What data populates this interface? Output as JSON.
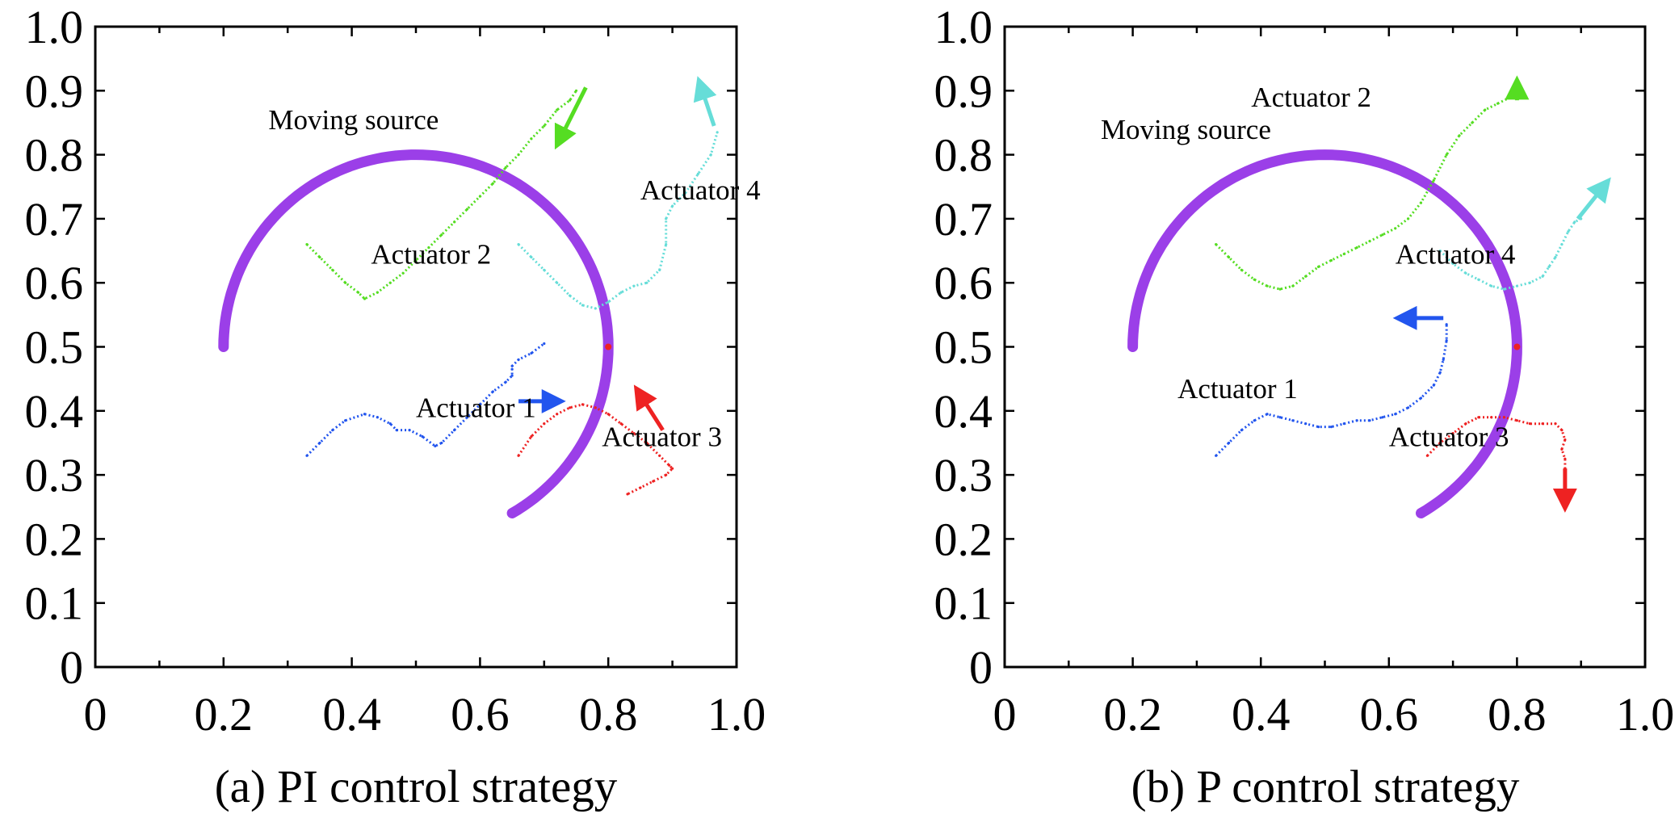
{
  "chart_data": [
    {
      "type": "line",
      "caption": "(a) PI control strategy",
      "xlim": [
        0,
        1.0
      ],
      "ylim": [
        0,
        1.0
      ],
      "xticks": [
        "0",
        "0.2",
        "0.4",
        "0.6",
        "0.8",
        "1.0"
      ],
      "yticks": [
        "0",
        "0.1",
        "0.2",
        "0.3",
        "0.4",
        "0.5",
        "0.6",
        "0.7",
        "0.8",
        "0.9",
        "1.0"
      ],
      "source": {
        "label": "Moving source",
        "label_at": [
          0.27,
          0.84
        ],
        "center": [
          0.5,
          0.5
        ],
        "radius": 0.3,
        "theta_start_deg": -60,
        "theta_end_deg": 180,
        "color": "#9b3fe8"
      },
      "series": [
        {
          "name": "Actuator 1",
          "color": "#2255ee",
          "label_at": [
            0.5,
            0.39
          ],
          "points": [
            [
              0.33,
              0.33
            ],
            [
              0.35,
              0.35
            ],
            [
              0.37,
              0.37
            ],
            [
              0.39,
              0.385
            ],
            [
              0.42,
              0.395
            ],
            [
              0.44,
              0.39
            ],
            [
              0.46,
              0.38
            ],
            [
              0.47,
              0.37
            ],
            [
              0.49,
              0.37
            ],
            [
              0.51,
              0.36
            ],
            [
              0.53,
              0.345
            ],
            [
              0.54,
              0.35
            ],
            [
              0.56,
              0.37
            ],
            [
              0.58,
              0.39
            ],
            [
              0.6,
              0.41
            ],
            [
              0.62,
              0.43
            ],
            [
              0.64,
              0.445
            ],
            [
              0.65,
              0.455
            ],
            [
              0.65,
              0.465
            ],
            [
              0.65,
              0.47
            ],
            [
              0.66,
              0.48
            ],
            [
              0.68,
              0.49
            ],
            [
              0.7,
              0.505
            ]
          ],
          "arrow": {
            "from": [
              0.66,
              0.415
            ],
            "to": [
              0.715,
              0.415
            ]
          }
        },
        {
          "name": "Actuator 2",
          "color": "#55dd22",
          "label_at": [
            0.43,
            0.63
          ],
          "points": [
            [
              0.33,
              0.66
            ],
            [
              0.35,
              0.64
            ],
            [
              0.37,
              0.62
            ],
            [
              0.39,
              0.6
            ],
            [
              0.41,
              0.585
            ],
            [
              0.42,
              0.575
            ],
            [
              0.44,
              0.585
            ],
            [
              0.46,
              0.6
            ],
            [
              0.48,
              0.615
            ],
            [
              0.5,
              0.635
            ],
            [
              0.52,
              0.655
            ],
            [
              0.54,
              0.675
            ],
            [
              0.56,
              0.695
            ],
            [
              0.58,
              0.715
            ],
            [
              0.6,
              0.735
            ],
            [
              0.62,
              0.755
            ],
            [
              0.64,
              0.78
            ],
            [
              0.66,
              0.8
            ],
            [
              0.68,
              0.825
            ],
            [
              0.7,
              0.845
            ],
            [
              0.72,
              0.87
            ],
            [
              0.74,
              0.885
            ],
            [
              0.75,
              0.9
            ]
          ],
          "arrow": {
            "from": [
              0.765,
              0.905
            ],
            "to": [
              0.725,
              0.825
            ]
          }
        },
        {
          "name": "Actuator 3",
          "color": "#ee2222",
          "label_at": [
            0.79,
            0.345
          ],
          "points": [
            [
              0.66,
              0.33
            ],
            [
              0.68,
              0.36
            ],
            [
              0.7,
              0.38
            ],
            [
              0.72,
              0.395
            ],
            [
              0.74,
              0.405
            ],
            [
              0.76,
              0.41
            ],
            [
              0.78,
              0.405
            ],
            [
              0.8,
              0.395
            ],
            [
              0.82,
              0.38
            ],
            [
              0.84,
              0.365
            ],
            [
              0.86,
              0.35
            ],
            [
              0.88,
              0.33
            ],
            [
              0.895,
              0.315
            ],
            [
              0.9,
              0.31
            ],
            [
              0.89,
              0.3
            ],
            [
              0.87,
              0.29
            ],
            [
              0.85,
              0.28
            ],
            [
              0.83,
              0.27
            ]
          ],
          "arrow": {
            "from": [
              0.885,
              0.37
            ],
            "to": [
              0.85,
              0.425
            ]
          }
        },
        {
          "name": "Actuator 4",
          "color": "#66ddd8",
          "label_at": [
            0.85,
            0.73
          ],
          "points": [
            [
              0.66,
              0.66
            ],
            [
              0.68,
              0.64
            ],
            [
              0.7,
              0.62
            ],
            [
              0.72,
              0.6
            ],
            [
              0.74,
              0.58
            ],
            [
              0.76,
              0.565
            ],
            [
              0.78,
              0.56
            ],
            [
              0.8,
              0.57
            ],
            [
              0.82,
              0.585
            ],
            [
              0.84,
              0.595
            ],
            [
              0.86,
              0.6
            ],
            [
              0.88,
              0.62
            ],
            [
              0.89,
              0.66
            ],
            [
              0.89,
              0.7
            ],
            [
              0.9,
              0.72
            ],
            [
              0.92,
              0.74
            ],
            [
              0.94,
              0.77
            ],
            [
              0.96,
              0.8
            ],
            [
              0.97,
              0.835
            ]
          ],
          "arrow": {
            "from": [
              0.965,
              0.845
            ],
            "to": [
              0.945,
              0.905
            ]
          }
        }
      ]
    },
    {
      "type": "line",
      "caption": "(b) P control strategy",
      "xlim": [
        0,
        1.0
      ],
      "ylim": [
        0,
        1.0
      ],
      "xticks": [
        "0",
        "0.2",
        "0.4",
        "0.6",
        "0.8",
        "1.0"
      ],
      "yticks": [
        "0",
        "0.1",
        "0.2",
        "0.3",
        "0.4",
        "0.5",
        "0.6",
        "0.7",
        "0.8",
        "0.9",
        "1.0"
      ],
      "source": {
        "label": "Moving source",
        "label_at": [
          0.15,
          0.825
        ],
        "center": [
          0.5,
          0.5
        ],
        "radius": 0.3,
        "theta_start_deg": -60,
        "theta_end_deg": 180,
        "color": "#9b3fe8"
      },
      "series": [
        {
          "name": "Actuator 1",
          "color": "#2255ee",
          "label_at": [
            0.27,
            0.42
          ],
          "points": [
            [
              0.33,
              0.33
            ],
            [
              0.35,
              0.35
            ],
            [
              0.37,
              0.37
            ],
            [
              0.39,
              0.385
            ],
            [
              0.41,
              0.395
            ],
            [
              0.43,
              0.39
            ],
            [
              0.45,
              0.385
            ],
            [
              0.47,
              0.38
            ],
            [
              0.49,
              0.375
            ],
            [
              0.51,
              0.375
            ],
            [
              0.53,
              0.38
            ],
            [
              0.55,
              0.385
            ],
            [
              0.57,
              0.385
            ],
            [
              0.59,
              0.39
            ],
            [
              0.61,
              0.395
            ],
            [
              0.63,
              0.405
            ],
            [
              0.65,
              0.42
            ],
            [
              0.67,
              0.44
            ],
            [
              0.68,
              0.46
            ],
            [
              0.685,
              0.48
            ],
            [
              0.69,
              0.51
            ],
            [
              0.69,
              0.535
            ]
          ],
          "arrow": {
            "from": [
              0.685,
              0.545
            ],
            "to": [
              0.625,
              0.545
            ]
          }
        },
        {
          "name": "Actuator 2",
          "color": "#55dd22",
          "label_at": [
            0.385,
            0.875
          ],
          "points": [
            [
              0.33,
              0.66
            ],
            [
              0.35,
              0.64
            ],
            [
              0.37,
              0.62
            ],
            [
              0.39,
              0.605
            ],
            [
              0.41,
              0.595
            ],
            [
              0.43,
              0.59
            ],
            [
              0.45,
              0.595
            ],
            [
              0.47,
              0.61
            ],
            [
              0.49,
              0.625
            ],
            [
              0.51,
              0.635
            ],
            [
              0.53,
              0.645
            ],
            [
              0.55,
              0.655
            ],
            [
              0.57,
              0.665
            ],
            [
              0.59,
              0.675
            ],
            [
              0.61,
              0.685
            ],
            [
              0.63,
              0.7
            ],
            [
              0.65,
              0.725
            ],
            [
              0.67,
              0.76
            ],
            [
              0.69,
              0.8
            ],
            [
              0.71,
              0.83
            ],
            [
              0.73,
              0.85
            ],
            [
              0.75,
              0.87
            ],
            [
              0.77,
              0.88
            ],
            [
              0.79,
              0.89
            ]
          ],
          "arrow": {
            "from": [
              0.8,
              0.885
            ],
            "to": [
              0.8,
              0.905
            ]
          }
        },
        {
          "name": "Actuator 3",
          "color": "#ee2222",
          "label_at": [
            0.6,
            0.345
          ],
          "points": [
            [
              0.66,
              0.33
            ],
            [
              0.68,
              0.35
            ],
            [
              0.7,
              0.365
            ],
            [
              0.72,
              0.38
            ],
            [
              0.74,
              0.39
            ],
            [
              0.76,
              0.39
            ],
            [
              0.78,
              0.39
            ],
            [
              0.8,
              0.385
            ],
            [
              0.82,
              0.38
            ],
            [
              0.84,
              0.38
            ],
            [
              0.86,
              0.38
            ],
            [
              0.87,
              0.37
            ],
            [
              0.875,
              0.355
            ],
            [
              0.87,
              0.34
            ],
            [
              0.875,
              0.325
            ],
            [
              0.875,
              0.31
            ]
          ],
          "arrow": {
            "from": [
              0.875,
              0.31
            ],
            "to": [
              0.875,
              0.26
            ]
          }
        },
        {
          "name": "Actuator 4",
          "color": "#66ddd8",
          "label_at": [
            0.61,
            0.63
          ],
          "points": [
            [
              0.68,
              0.65
            ],
            [
              0.7,
              0.63
            ],
            [
              0.72,
              0.615
            ],
            [
              0.74,
              0.605
            ],
            [
              0.76,
              0.595
            ],
            [
              0.78,
              0.59
            ],
            [
              0.8,
              0.595
            ],
            [
              0.82,
              0.6
            ],
            [
              0.84,
              0.61
            ],
            [
              0.85,
              0.625
            ],
            [
              0.86,
              0.64
            ],
            [
              0.87,
              0.66
            ],
            [
              0.88,
              0.68
            ],
            [
              0.89,
              0.695
            ],
            [
              0.9,
              0.7
            ]
          ],
          "arrow": {
            "from": [
              0.895,
              0.7
            ],
            "to": [
              0.935,
              0.75
            ]
          }
        }
      ]
    }
  ]
}
